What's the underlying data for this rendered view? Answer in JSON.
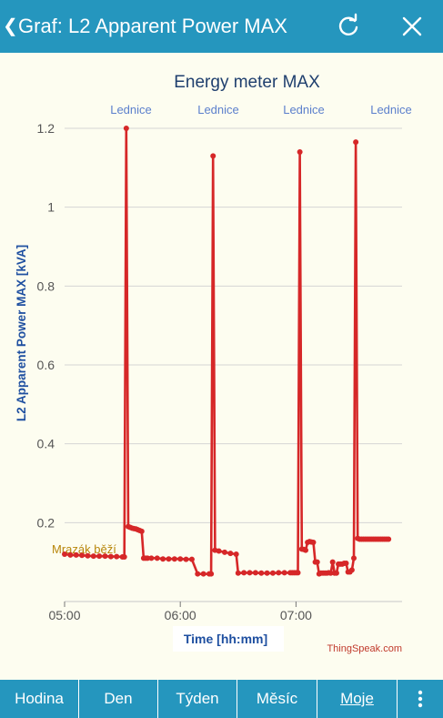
{
  "header": {
    "back_glyph": "❮",
    "title": "Graf: L2  Apparent Power MAX",
    "refresh_icon": "refresh-icon",
    "close_icon": "close-icon"
  },
  "chart_data": {
    "type": "line",
    "title": "Energy meter MAX",
    "xlabel": "Time [hh:mm]",
    "ylabel": "L2 Apparent Power MAX [kVA]",
    "credit": "ThingSpeak.com",
    "ylim": [
      0,
      1.2
    ],
    "xlim": [
      "05:00",
      "07:55"
    ],
    "grid": true,
    "x_ticks": [
      "05:00",
      "06:00",
      "07:00"
    ],
    "y_ticks": [
      0.2,
      0.4,
      0.6,
      0.8,
      1,
      1.2
    ],
    "y_tick_labels": [
      "0.2",
      "0.4",
      "0.6",
      "0.8",
      "1",
      "1.2"
    ],
    "colors": {
      "line": "#d62728",
      "title": "#1f3f6e",
      "label_blue": "#1e4fa0",
      "annotation_top": "#5b7fcc",
      "annotation_bottom": "#b8860b",
      "credit": "#c0392b"
    },
    "annotations": [
      {
        "text": "Lednice",
        "x": "05:32",
        "position": "top"
      },
      {
        "text": "Lednice",
        "x": "06:16",
        "position": "top"
      },
      {
        "text": "Lednice",
        "x": "06:60",
        "position": "top"
      },
      {
        "text": "Mrazák běží",
        "x": "05:00",
        "y": 0.175,
        "position": "inside-left"
      }
    ],
    "series": [
      {
        "x": [
          "05:00",
          "05:03",
          "05:06",
          "05:09",
          "05:12",
          "05:15",
          "05:18",
          "05:21",
          "05:24",
          "05:27",
          "05:30",
          "05:31",
          "05:32",
          "05:33",
          "05:34",
          "05:35",
          "05:36",
          "05:37",
          "05:38",
          "05:39",
          "05:40",
          "05:41",
          "05:42",
          "05:43",
          "05:45",
          "05:48",
          "05:51",
          "05:54",
          "05:57",
          "06:00",
          "06:03",
          "06:06",
          "06:09",
          "06:12",
          "06:15",
          "06:16",
          "06:17",
          "06:18",
          "06:20",
          "06:23",
          "06:26",
          "06:29",
          "06:30",
          "06:33",
          "06:36",
          "06:39",
          "06:42",
          "06:45",
          "06:48",
          "06:51",
          "06:54",
          "06:57",
          "06:58",
          "06:59",
          "07:00",
          "07:01",
          "07:02",
          "07:03",
          "07:04",
          "07:05",
          "07:06",
          "07:07",
          "07:08",
          "07:09",
          "07:10",
          "07:11",
          "07:12",
          "07:13",
          "07:14",
          "07:15",
          "07:16",
          "07:17",
          "07:18",
          "07:19",
          "07:20",
          "07:21",
          "07:22",
          "07:23",
          "07:24",
          "07:25",
          "07:26",
          "07:27",
          "07:28",
          "07:29",
          "07:30",
          "07:31",
          "07:32",
          "07:33",
          "07:34",
          "07:35",
          "07:36",
          "07:37",
          "07:38",
          "07:39",
          "07:40",
          "07:41",
          "07:42",
          "07:43",
          "07:44",
          "07:45",
          "07:46",
          "07:47",
          "07:48"
        ],
        "y": [
          0.12,
          0.118,
          0.118,
          0.117,
          0.116,
          0.115,
          0.115,
          0.115,
          0.114,
          0.114,
          0.113,
          0.113,
          1.2,
          0.19,
          0.188,
          0.186,
          0.185,
          0.184,
          0.182,
          0.18,
          0.178,
          0.11,
          0.11,
          0.11,
          0.11,
          0.11,
          0.108,
          0.108,
          0.108,
          0.108,
          0.107,
          0.107,
          0.07,
          0.07,
          0.07,
          0.07,
          1.13,
          0.13,
          0.128,
          0.125,
          0.122,
          0.12,
          0.072,
          0.073,
          0.073,
          0.073,
          0.072,
          0.072,
          0.072,
          0.073,
          0.073,
          0.073,
          0.073,
          0.073,
          0.073,
          0.073,
          1.14,
          0.133,
          0.132,
          0.13,
          0.15,
          0.152,
          0.151,
          0.15,
          0.1,
          0.1,
          0.07,
          0.072,
          0.072,
          0.072,
          0.072,
          0.073,
          0.072,
          0.1,
          0.072,
          0.072,
          0.095,
          0.095,
          0.095,
          0.097,
          0.097,
          0.075,
          0.075,
          0.08,
          0.11,
          1.165,
          0.16,
          0.158,
          0.158,
          0.158,
          0.158,
          0.158,
          0.158,
          0.158,
          0.158,
          0.158,
          0.158,
          0.158,
          0.158,
          0.158,
          0.158,
          0.158,
          0.158
        ]
      }
    ]
  },
  "bottom_tabs": [
    {
      "label": "Hodina",
      "active": false
    },
    {
      "label": "Den",
      "active": false
    },
    {
      "label": "Týden",
      "active": false
    },
    {
      "label": "Měsíc",
      "active": false
    },
    {
      "label": "Moje",
      "active": true
    }
  ],
  "more_icon": "more-vertical-icon"
}
